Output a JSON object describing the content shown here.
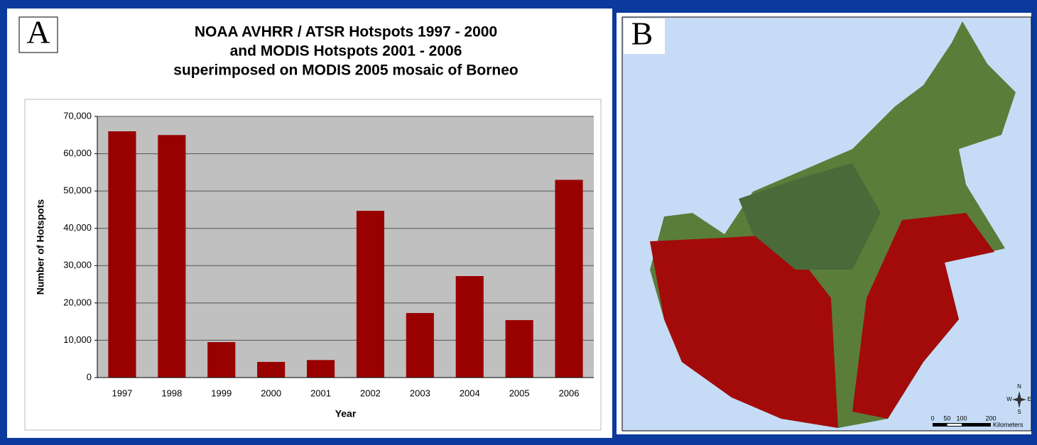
{
  "chart_data": {
    "type": "bar",
    "title": [
      "NOAA AVHRR / ATSR Hotspots 1997 - 2000",
      "and MODIS Hotspots 2001 - 2006",
      "superimposed on MODIS 2005 mosaic of Borneo"
    ],
    "x_label": "Year",
    "y_label": "Number of Hotspots",
    "categories": [
      "1997",
      "1998",
      "1999",
      "2000",
      "2001",
      "2002",
      "2003",
      "2004",
      "2005",
      "2006"
    ],
    "values": [
      66000,
      65000,
      9500,
      4200,
      4700,
      44700,
      17300,
      27200,
      15400,
      53000
    ],
    "color": "#990000",
    "ylim": [
      0,
      70000
    ],
    "yticks": [
      0,
      {
        "value": 10000,
        "label": "10,000"
      },
      {
        "value": 20000,
        "label": "20,000"
      },
      {
        "value": 30000,
        "label": "30,000"
      },
      {
        "value": 40000,
        "label": "40,000"
      },
      {
        "value": 50000,
        "label": "50,000"
      },
      {
        "value": 60000,
        "label": "60,000"
      },
      {
        "value": 70000,
        "label": "70,000"
      }
    ],
    "grid": true
  },
  "panel_labels": [
    "A",
    "B"
  ],
  "map": {
    "scale_labels": [
      0,
      50,
      100,
      200
    ],
    "scale_unit": "Kilometers",
    "compass": [
      "N",
      "S",
      "W",
      "E"
    ]
  }
}
